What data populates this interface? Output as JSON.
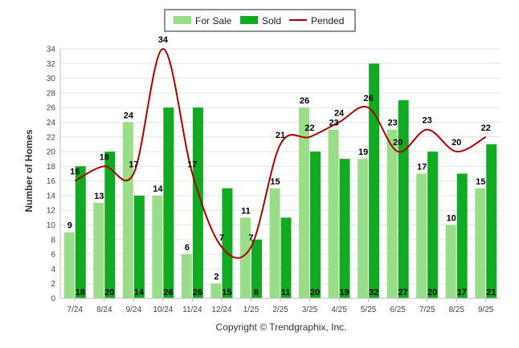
{
  "chart_data": {
    "type": "bar",
    "categories": [
      "7/24",
      "8/24",
      "9/24",
      "10/24",
      "11/24",
      "12/24",
      "1/25",
      "2/25",
      "3/25",
      "4/25",
      "5/25",
      "6/25",
      "7/25",
      "8/25",
      "9/25"
    ],
    "series": [
      {
        "name": "For Sale",
        "kind": "bar",
        "color": "#99dd88",
        "values": [
          9,
          13,
          24,
          14,
          6,
          2,
          11,
          15,
          26,
          23,
          19,
          23,
          17,
          10,
          15
        ]
      },
      {
        "name": "Sold",
        "kind": "bar",
        "color": "#11aa22",
        "values": [
          18,
          20,
          14,
          26,
          26,
          15,
          8,
          11,
          20,
          19,
          32,
          27,
          20,
          17,
          21
        ]
      },
      {
        "name": "Pended",
        "kind": "line",
        "color": "#aa0000",
        "values": [
          16,
          18,
          17,
          34,
          17,
          7,
          7,
          21,
          22,
          24,
          26,
          20,
          23,
          20,
          22
        ]
      }
    ],
    "ylabel": "Number of Homes",
    "xlabel": "",
    "ylim": [
      0,
      34
    ],
    "yticks": [
      0,
      2,
      4,
      6,
      8,
      10,
      12,
      14,
      16,
      18,
      20,
      22,
      24,
      26,
      28,
      30,
      32,
      34
    ],
    "grid": true,
    "legend_position": "top-center",
    "footer": "Copyright © Trendgraphix, Inc."
  }
}
